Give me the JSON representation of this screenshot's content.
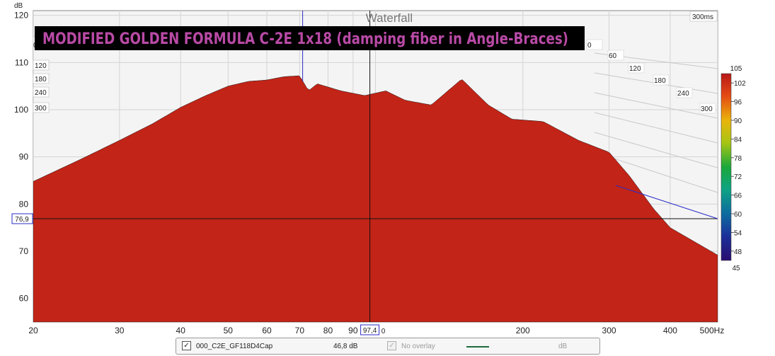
{
  "chart_data": {
    "type": "waterfall",
    "title": "Waterfall",
    "banner": "MODIFIED GOLDEN FORMULA C-2E 1x18 (damping fiber in Angle-Braces)",
    "x_unit": "Hz",
    "x_ticks": [
      "20",
      "30",
      "40",
      "50",
      "60",
      "70",
      "80",
      "90",
      "100",
      "200",
      "300",
      "400",
      "500Hz"
    ],
    "x_tick_values": [
      20,
      30,
      40,
      50,
      60,
      70,
      80,
      90,
      100,
      200,
      300,
      400,
      500
    ],
    "xlim": [
      20,
      500
    ],
    "y_unit": "dB",
    "y_ticks": [
      "60",
      "70",
      "80",
      "90",
      "100",
      "110",
      "120"
    ],
    "y_tick_values": [
      60,
      70,
      80,
      90,
      100,
      110,
      120
    ],
    "ylim": [
      55,
      121
    ],
    "time_unit": "ms",
    "time_ticks_left": [
      "0",
      "60",
      "120",
      "180",
      "240",
      "300"
    ],
    "time_ticks_right": [
      "0",
      "60",
      "120",
      "180",
      "240",
      "300"
    ],
    "time_max_label": "300ms",
    "time_range_ms": [
      0,
      300
    ],
    "slices": 120,
    "cursor_frequency_label": "97,4",
    "cursor_frequency": 97.4,
    "cursor_level_label": "76,9",
    "cursor_level": 76.9,
    "blue_marker_frequency": 71,
    "colorscale_max": "105",
    "colorscale_min": "45",
    "colorscale_ticks": [
      "102",
      "96",
      "90",
      "84",
      "78",
      "72",
      "66",
      "60",
      "54",
      "48"
    ],
    "colorscale_tick_values": [
      102,
      96,
      90,
      84,
      78,
      72,
      66,
      60,
      54,
      48
    ],
    "colorscale_range": [
      45,
      105
    ],
    "front_response": [
      {
        "f": 20,
        "db": 84.8
      },
      {
        "f": 25,
        "db": 89.5
      },
      {
        "f": 30,
        "db": 93.5
      },
      {
        "f": 35,
        "db": 97.0
      },
      {
        "f": 40,
        "db": 100.5
      },
      {
        "f": 45,
        "db": 103.0
      },
      {
        "f": 50,
        "db": 105.0
      },
      {
        "f": 55,
        "db": 106.0
      },
      {
        "f": 60,
        "db": 106.3
      },
      {
        "f": 65,
        "db": 107.0
      },
      {
        "f": 70,
        "db": 107.2
      },
      {
        "f": 73,
        "db": 104.0
      },
      {
        "f": 76,
        "db": 105.5
      },
      {
        "f": 85,
        "db": 104.0
      },
      {
        "f": 95,
        "db": 103.0
      },
      {
        "f": 105,
        "db": 104.0
      },
      {
        "f": 115,
        "db": 102.0
      },
      {
        "f": 130,
        "db": 101.0
      },
      {
        "f": 150,
        "db": 106.5
      },
      {
        "f": 170,
        "db": 101.0
      },
      {
        "f": 190,
        "db": 98.0
      },
      {
        "f": 220,
        "db": 97.5
      },
      {
        "f": 260,
        "db": 93.5
      },
      {
        "f": 300,
        "db": 91.0
      },
      {
        "f": 330,
        "db": 86.0
      },
      {
        "f": 370,
        "db": 79.0
      },
      {
        "f": 400,
        "db": 75.0
      }
    ]
  },
  "legend": {
    "series_checked": "✓",
    "series_name": "000_C2E_GF118D4Cap",
    "series_value": "46,8 dB",
    "overlay_checked": "✓",
    "overlay_label": "No overlay",
    "overlay_unit": "dB"
  },
  "colors": {
    "series_line": "#1e6b3b",
    "banner_bg": "#000000",
    "banner_text": "#b94aa6",
    "cursor": "#2b2bc8"
  }
}
